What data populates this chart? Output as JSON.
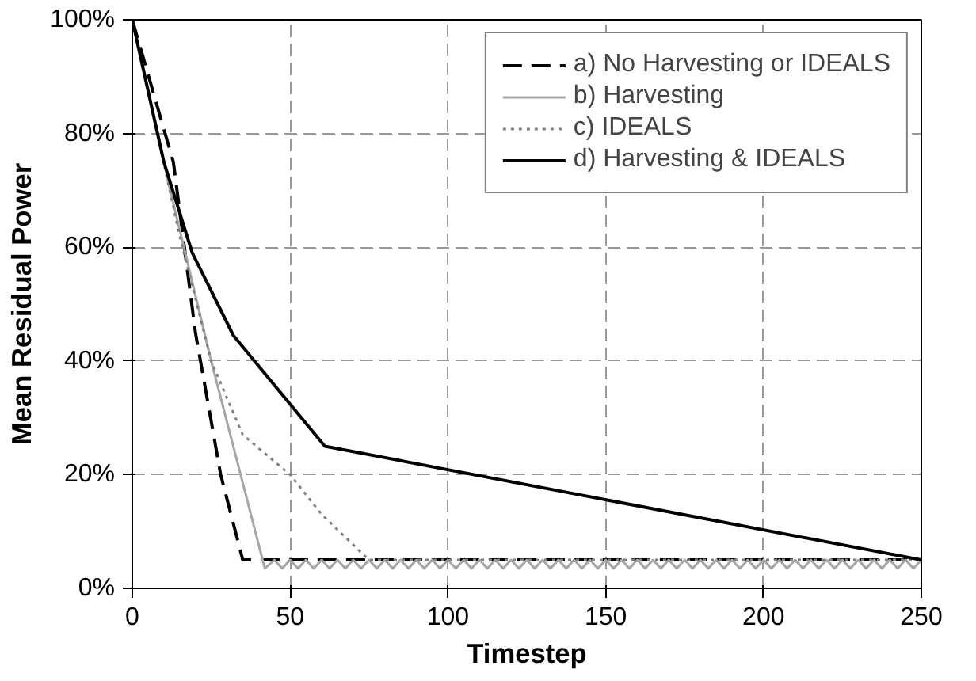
{
  "chart_data": {
    "type": "line",
    "xlabel": "Timestep",
    "ylabel": "Mean Residual Power",
    "xlim": [
      0,
      250
    ],
    "xticks": [
      0,
      50,
      100,
      150,
      200,
      250
    ],
    "ylim": [
      0,
      100
    ],
    "yticks": [
      {
        "value": 0,
        "label": "0%"
      },
      {
        "value": 20,
        "label": "20%"
      },
      {
        "value": 40,
        "label": "40%"
      },
      {
        "value": 60,
        "label": "60%"
      },
      {
        "value": 80,
        "label": "80%"
      },
      {
        "value": 100,
        "label": "100%"
      }
    ],
    "grid": true,
    "legend": "top right",
    "marker": "none",
    "series": [
      {
        "name": "a) No Harvesting or IDEALS",
        "color": "#000000",
        "line_style": "dashed",
        "x": [
          0,
          13,
          20,
          28,
          35,
          250
        ],
        "values": [
          100,
          75,
          45,
          20,
          5,
          5
        ]
      },
      {
        "name": "b) Harvesting",
        "color": "#a6a6a6",
        "line_style": "solid",
        "x": [
          0,
          12,
          25,
          42,
          45,
          47.5,
          50,
          52.5,
          55,
          57.5,
          60,
          62.5,
          65,
          67.5,
          70,
          72.5,
          75,
          77.5,
          80,
          82.5,
          85,
          87.5,
          90,
          92.5,
          95,
          97.5,
          100,
          102.5,
          105,
          107.5,
          110,
          112.5,
          115,
          117.5,
          120,
          122.5,
          125,
          127.5,
          130,
          132.5,
          135,
          137.5,
          140,
          142.5,
          145,
          147.5,
          150,
          152.5,
          155,
          157.5,
          160,
          162.5,
          165,
          167.5,
          170,
          172.5,
          175,
          177.5,
          180,
          182.5,
          185,
          187.5,
          190,
          192.5,
          195,
          197.5,
          200,
          202.5,
          205,
          207.5,
          210,
          212.5,
          215,
          217.5,
          220,
          222.5,
          225,
          227.5,
          230,
          232.5,
          235,
          237.5,
          240,
          242.5,
          245,
          247.5,
          250
        ],
        "values": [
          100,
          70,
          40,
          3.5,
          5,
          3.5,
          5,
          3.5,
          5,
          3.5,
          5,
          3.5,
          5,
          3.5,
          5,
          3.5,
          5,
          3.5,
          5,
          3.5,
          5,
          3.5,
          5,
          3.5,
          5,
          3.5,
          5,
          3.5,
          5,
          3.5,
          5,
          3.5,
          5,
          3.5,
          5,
          3.5,
          5,
          3.5,
          5,
          3.5,
          5,
          3.5,
          5,
          3.5,
          5,
          3.5,
          5,
          3.5,
          5,
          3.5,
          5,
          3.5,
          5,
          3.5,
          5,
          3.5,
          5,
          3.5,
          5,
          3.5,
          5,
          3.5,
          5,
          3.5,
          5,
          3.5,
          5,
          3.5,
          5,
          3.5,
          5,
          3.5,
          5,
          3.5,
          5,
          3.5,
          5,
          3.5,
          5,
          3.5,
          5,
          3.5,
          5,
          3.5,
          5,
          3.5,
          5
        ]
      },
      {
        "name": "c) IDEALS",
        "color": "#808080",
        "line_style": "dotted",
        "x": [
          0,
          15,
          25,
          35,
          50,
          60,
          75,
          250
        ],
        "values": [
          100,
          62,
          40,
          27,
          20,
          13,
          5,
          5
        ]
      },
      {
        "name": "d) Harvesting & IDEALS",
        "color": "#000000",
        "line_style": "solid",
        "x": [
          0,
          10,
          19,
          32,
          61,
          250
        ],
        "values": [
          100,
          75,
          59,
          44.5,
          25,
          5
        ]
      }
    ]
  }
}
